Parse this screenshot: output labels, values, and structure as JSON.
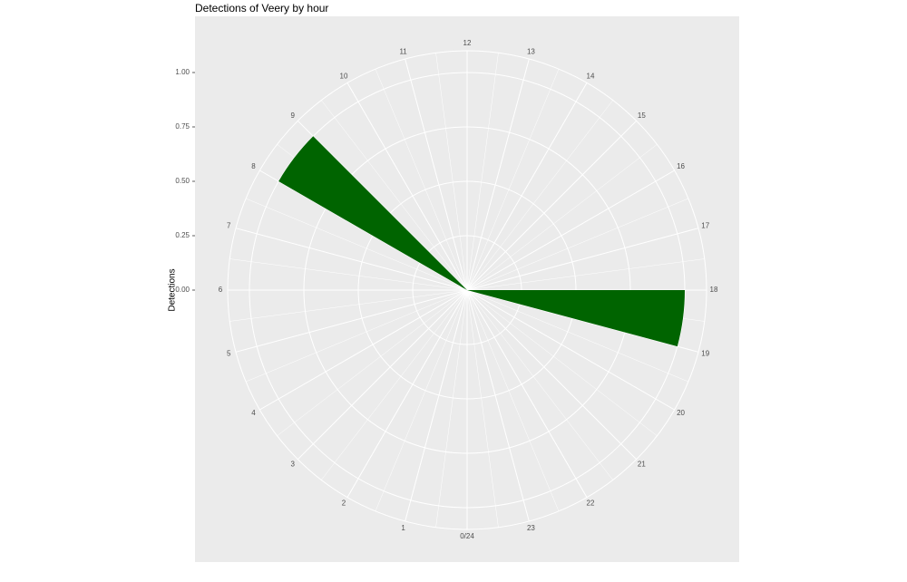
{
  "chart_data": {
    "type": "polar-bar",
    "title": "Detections of Veery by hour",
    "y_label": "Detections",
    "x": [
      8,
      18
    ],
    "values": [
      1,
      1
    ],
    "color": "#006400",
    "xlim": [
      0,
      24
    ],
    "xticks": [
      {
        "value": 0,
        "label": "0/24"
      },
      1,
      2,
      3,
      4,
      5,
      6,
      7,
      8,
      9,
      10,
      11,
      12,
      13,
      14,
      15,
      16,
      17,
      18,
      19,
      20,
      21,
      22,
      23
    ],
    "ylim": [
      0,
      1.1
    ],
    "yticks": [
      {
        "value": 0,
        "label": "0.00"
      },
      {
        "value": 0.25,
        "label": "0.25"
      },
      {
        "value": 0.5,
        "label": "0.50"
      },
      {
        "value": 0.75,
        "label": "0.75"
      },
      {
        "value": 1,
        "label": "1.00"
      }
    ],
    "grid": true
  }
}
